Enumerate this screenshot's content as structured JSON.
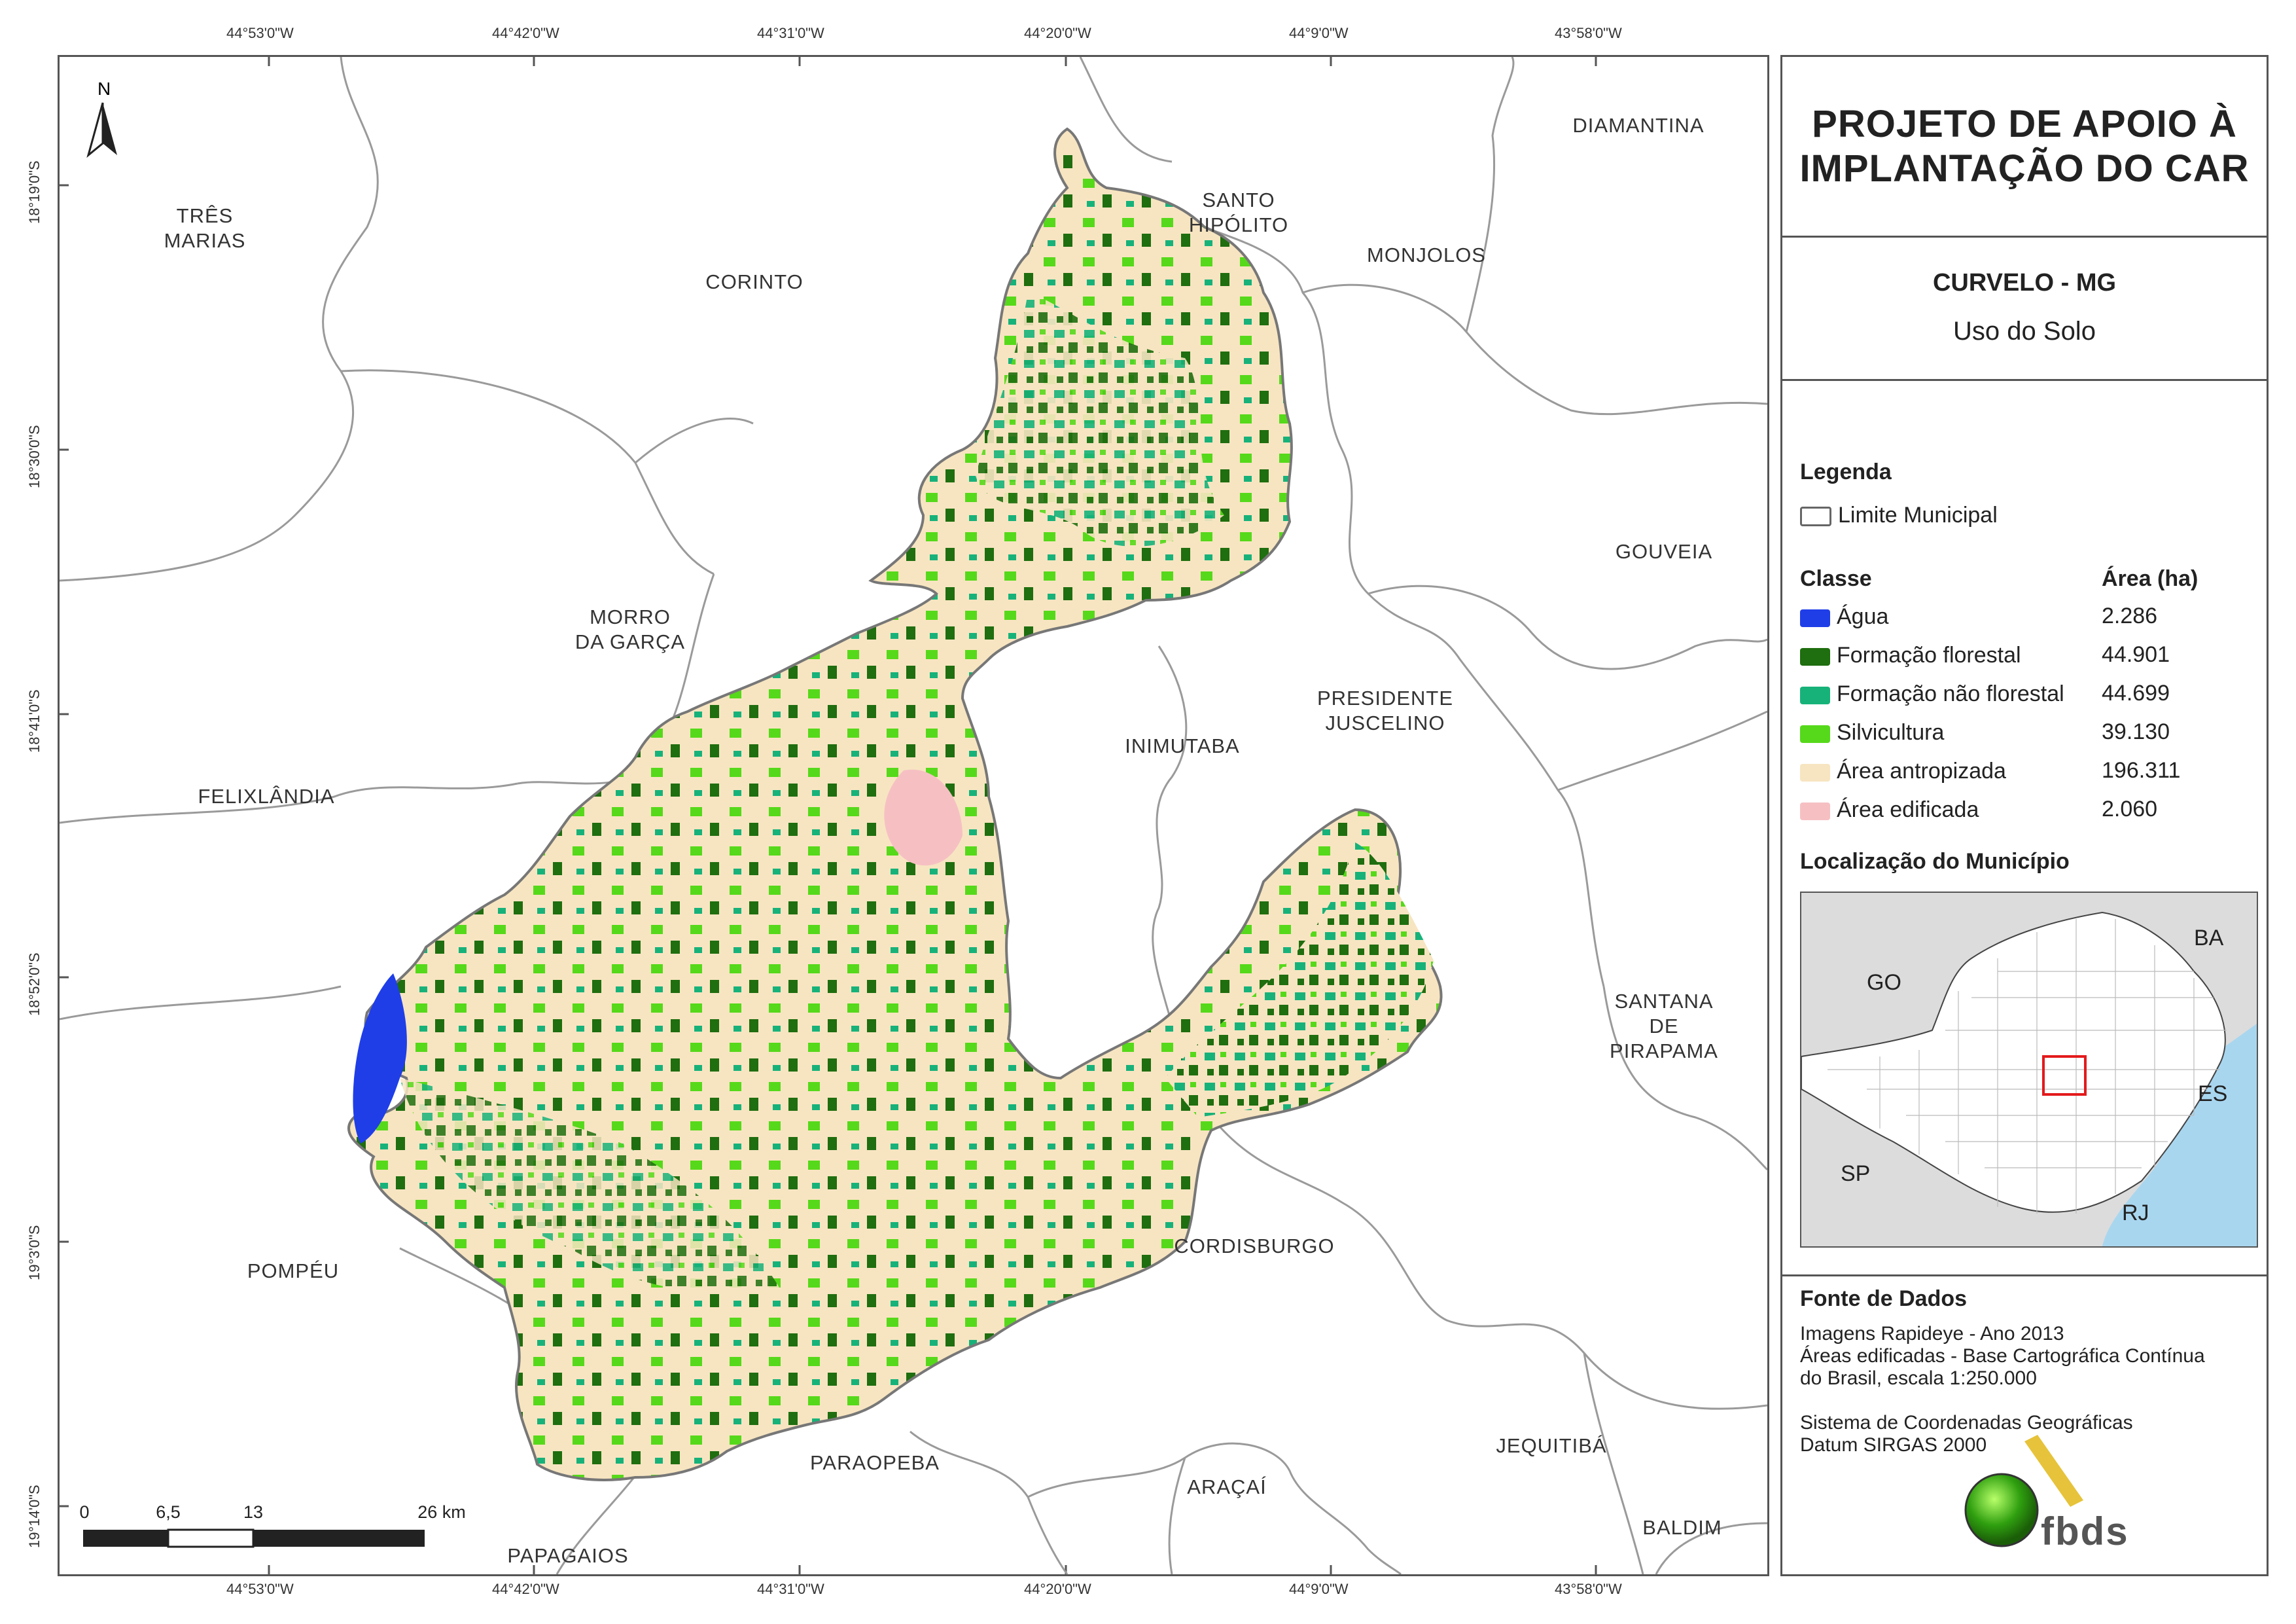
{
  "title": {
    "line1": "PROJETO DE APOIO À",
    "line2": "IMPLANTAÇÃO DO CAR"
  },
  "municipality": "CURVELO - MG",
  "theme": "Uso do Solo",
  "legend": {
    "heading": "Legenda",
    "boundary_label": "Limite Municipal",
    "class_header": "Classe",
    "area_header": "Área (ha)",
    "classes": [
      {
        "name": "Água",
        "area": "2.286",
        "color": "#1f3ee8"
      },
      {
        "name": "Formação florestal",
        "area": "44.901",
        "color": "#1f6e0f"
      },
      {
        "name": "Formação não florestal",
        "area": "44.699",
        "color": "#17b27a"
      },
      {
        "name": "Silvicultura",
        "area": "39.130",
        "color": "#56d91a"
      },
      {
        "name": "Área antropizada",
        "area": "196.311",
        "color": "#f7e5c1"
      },
      {
        "name": "Área edificada",
        "area": "2.060",
        "color": "#f6c0c3"
      }
    ]
  },
  "location": {
    "heading": "Localização do Município",
    "labels": [
      "GO",
      "BA",
      "ES",
      "SP",
      "RJ"
    ]
  },
  "sources": {
    "heading": "Fonte de Dados",
    "lines": [
      "Imagens Rapideye - Ano 2013",
      "Áreas edificadas - Base Cartográfica Contínua",
      "do Brasil, escala 1:250.000",
      "",
      "Sistema de Coordenadas Geográficas",
      "Datum SIRGAS 2000"
    ]
  },
  "logo_text": "fbds",
  "north": "N",
  "longitudes": [
    "44°53'0\"W",
    "44°42'0\"W",
    "44°31'0\"W",
    "44°20'0\"W",
    "44°9'0\"W",
    "43°58'0\"W"
  ],
  "latitudes": [
    "18°19'0\"S",
    "18°30'0\"S",
    "18°41'0\"S",
    "18°52'0\"S",
    "19°3'0\"S",
    "19°14'0\"S"
  ],
  "municipalities": [
    {
      "id": "tres-marias",
      "text": "TRÊS\nMARIAS"
    },
    {
      "id": "corinto",
      "text": "CORINTO"
    },
    {
      "id": "santo-hipolito",
      "text": "SANTO\nHIPÓLITO"
    },
    {
      "id": "diamantina",
      "text": "DIAMANTINA"
    },
    {
      "id": "monjolos",
      "text": "MONJOLOS"
    },
    {
      "id": "gouveia",
      "text": "GOUVEIA"
    },
    {
      "id": "morro-da-garca",
      "text": "MORRO\nDA GARÇA"
    },
    {
      "id": "presidente-juscelino",
      "text": "PRESIDENTE\nJUSCELINO"
    },
    {
      "id": "inimutaba",
      "text": "INIMUTABA"
    },
    {
      "id": "felixlandia",
      "text": "FELIXLÂNDIA"
    },
    {
      "id": "santana-de-pirapama",
      "text": "SANTANA DE\nPIRAPAMA"
    },
    {
      "id": "cordisburgo",
      "text": "CORDISBURGO"
    },
    {
      "id": "pompeu",
      "text": "POMPÉU"
    },
    {
      "id": "paraopeba",
      "text": "PARAOPEBA"
    },
    {
      "id": "jequitiba",
      "text": "JEQUITIBÁ"
    },
    {
      "id": "aracai",
      "text": "ARAÇAÍ"
    },
    {
      "id": "baldim",
      "text": "BALDIM"
    },
    {
      "id": "papagaios",
      "text": "PAPAGAIOS"
    }
  ],
  "scale": {
    "labels": [
      "0",
      "6,5",
      "13",
      "26 km"
    ]
  }
}
